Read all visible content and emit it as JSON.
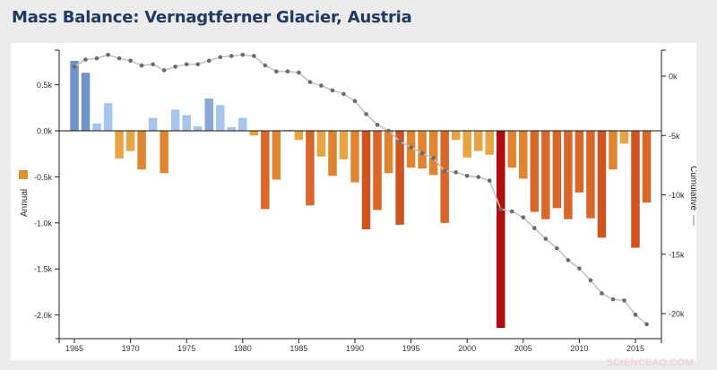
{
  "page": {
    "title": "Mass Balance: Vernagtferner Glacier, Austria",
    "watermark": "SCIENCEAQ.COM"
  },
  "chart_data": {
    "type": "bar",
    "title": "Mass Balance: Vernagtferner Glacier, Austria",
    "xlabel": "",
    "ylabel": "Annual",
    "y2label": "Cumulative",
    "legend": [
      {
        "label": "Annual",
        "marker": "square",
        "color": "#e0922e"
      },
      {
        "label": "Cumulative",
        "marker": "line",
        "color": "#c8c8c8"
      }
    ],
    "ylim": [
      -2.25,
      0.85
    ],
    "y2lim": [
      -22,
      2
    ],
    "yticks": [
      "0.5k",
      "0.0k",
      "-0.5k",
      "-1.0k",
      "-1.5k",
      "-2.0k"
    ],
    "ytick_values": [
      0.5,
      0.0,
      -0.5,
      -1.0,
      -1.5,
      -2.0
    ],
    "y2ticks": [
      "0k",
      "-5k",
      "-10k",
      "-15k",
      "-20k"
    ],
    "y2tick_values": [
      0,
      -5,
      -10,
      -15,
      -20
    ],
    "xticks": [
      "1965",
      "1970",
      "1975",
      "1980",
      "1985",
      "1990",
      "1995",
      "2000",
      "2005",
      "2010",
      "2015"
    ],
    "grid": false,
    "legend_position": "left/right axis labels",
    "categories": [
      1965,
      1966,
      1967,
      1968,
      1969,
      1970,
      1971,
      1972,
      1973,
      1974,
      1975,
      1976,
      1977,
      1978,
      1979,
      1980,
      1981,
      1982,
      1983,
      1984,
      1985,
      1986,
      1987,
      1988,
      1989,
      1990,
      1991,
      1992,
      1993,
      1994,
      1995,
      1996,
      1997,
      1998,
      1999,
      2000,
      2001,
      2002,
      2003,
      2004,
      2005,
      2006,
      2007,
      2008,
      2009,
      2010,
      2011,
      2012,
      2013,
      2014,
      2015,
      2016
    ],
    "series": [
      {
        "name": "Annual",
        "unit": "k",
        "type": "bar",
        "values": [
          0.76,
          0.63,
          0.08,
          0.3,
          -0.3,
          -0.22,
          -0.42,
          0.14,
          -0.46,
          0.23,
          0.17,
          0.05,
          0.35,
          0.28,
          0.04,
          0.14,
          -0.05,
          -0.85,
          -0.53,
          0.01,
          -0.1,
          -0.81,
          -0.28,
          -0.49,
          -0.31,
          -0.56,
          -1.07,
          -0.86,
          -0.46,
          -1.02,
          -0.4,
          -0.41,
          -0.48,
          -1.0,
          -0.1,
          -0.29,
          -0.22,
          -0.26,
          -2.14,
          -0.4,
          -0.52,
          -0.88,
          -0.96,
          -0.84,
          -0.96,
          -0.67,
          -0.95,
          -1.16,
          -0.42,
          -0.14,
          -1.27,
          -0.78
        ]
      },
      {
        "name": "Cumulative",
        "unit": "k",
        "type": "line",
        "axis": "right",
        "values": [
          0.8,
          1.4,
          1.5,
          1.8,
          1.5,
          1.3,
          0.9,
          1.0,
          0.5,
          0.8,
          1.0,
          1.0,
          1.3,
          1.6,
          1.7,
          1.8,
          1.7,
          0.9,
          0.4,
          0.4,
          0.3,
          -0.5,
          -0.8,
          -1.2,
          -1.5,
          -2.1,
          -3.2,
          -4.1,
          -4.6,
          -5.5,
          -6.0,
          -6.5,
          -6.9,
          -8.0,
          -8.1,
          -8.4,
          -8.5,
          -8.8,
          -11.2,
          -11.4,
          -11.9,
          -12.8,
          -13.7,
          -14.5,
          -15.5,
          -16.2,
          -17.2,
          -18.3,
          -18.8,
          -18.9,
          -20.1,
          -20.9
        ]
      }
    ]
  }
}
